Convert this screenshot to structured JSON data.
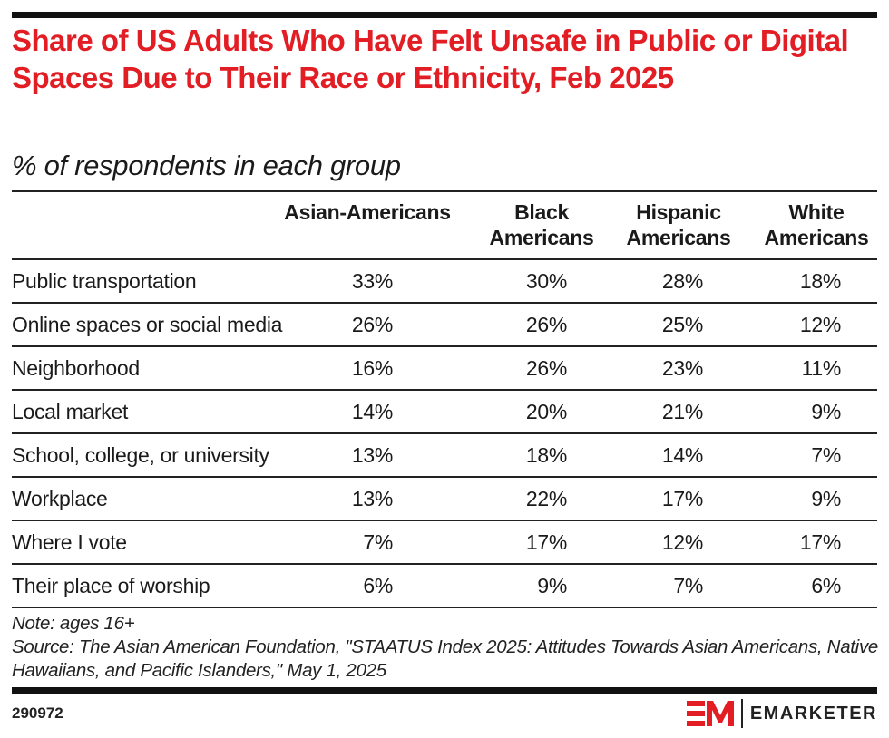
{
  "header": {
    "title": "Share of US Adults Who Have Felt Unsafe in Public or Digital Spaces Due to Their Race or Ethnicity, Feb 2025",
    "subtitle": "% of respondents in each group"
  },
  "chart_data": {
    "type": "table",
    "title": "Share of US Adults Who Have Felt Unsafe in Public or Digital Spaces Due to Their Race or Ethnicity, Feb 2025",
    "subtitle": "% of respondents in each group",
    "columns": [
      "Asian-Americans",
      "Black Americans",
      "Hispanic Americans",
      "White Americans"
    ],
    "column_header_lines": [
      [
        "Asian-Americans",
        ""
      ],
      [
        "Black",
        "Americans"
      ],
      [
        "Hispanic",
        "Americans"
      ],
      [
        "White",
        "Americans"
      ]
    ],
    "rows": [
      {
        "label": "Public transportation",
        "values": [
          33,
          30,
          28,
          18
        ],
        "display": [
          "33%",
          "30%",
          "28%",
          "18%"
        ]
      },
      {
        "label": "Online spaces or social media",
        "values": [
          26,
          26,
          25,
          12
        ],
        "display": [
          "26%",
          "26%",
          "25%",
          "12%"
        ]
      },
      {
        "label": "Neighborhood",
        "values": [
          16,
          26,
          23,
          11
        ],
        "display": [
          "16%",
          "26%",
          "23%",
          "11%"
        ]
      },
      {
        "label": "Local market",
        "values": [
          14,
          20,
          21,
          9
        ],
        "display": [
          "14%",
          "20%",
          "21%",
          "9%"
        ]
      },
      {
        "label": "School, college, or university",
        "values": [
          13,
          18,
          14,
          7
        ],
        "display": [
          "13%",
          "18%",
          "14%",
          "7%"
        ]
      },
      {
        "label": "Workplace",
        "values": [
          13,
          22,
          17,
          9
        ],
        "display": [
          "13%",
          "22%",
          "17%",
          "9%"
        ]
      },
      {
        "label": "Where I vote",
        "values": [
          7,
          17,
          12,
          17
        ],
        "display": [
          "7%",
          "17%",
          "12%",
          "17%"
        ]
      },
      {
        "label": "Their place of worship",
        "values": [
          6,
          9,
          7,
          6
        ],
        "display": [
          "6%",
          "9%",
          "7%",
          "6%"
        ]
      }
    ],
    "unit": "%"
  },
  "footer": {
    "note": "Note: ages 16+",
    "source": "Source: The Asian American Foundation, \"STAATUS Index 2025: Attitudes Towards Asian Americans, Native Hawaiians, and Pacific Islanders,\" May 1, 2025",
    "chart_id": "290972",
    "brand": "EMARKETER"
  },
  "colors": {
    "title": "#e21d24",
    "brand_red": "#e21d24",
    "rule": "#111111",
    "text": "#1a1a1a"
  }
}
